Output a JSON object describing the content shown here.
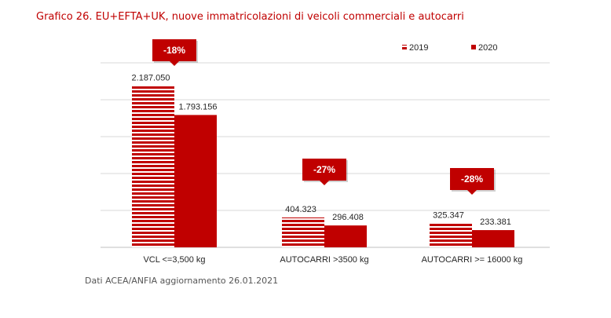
{
  "title": "Grafico 26. EU+EFTA+UK, nuove immatricolazioni di veicoli commerciali e autocarri",
  "source": "Dati ACEA/ANFIA aggiornamento 26.01.2021",
  "colors": {
    "bar_2020": "#c00000",
    "bar_2019_stripe": "#c00000",
    "title": "#c00000",
    "grid": "#d9d9d9"
  },
  "chart_data": {
    "type": "bar",
    "categories": [
      "VCL <=3,500 kg",
      "AUTOCARRI >3500 kg",
      "AUTOCARRI >= 16000 kg"
    ],
    "series": [
      {
        "name": "2019",
        "values": [
          2187050,
          404323,
          325347
        ],
        "labels": [
          "2.187.050",
          "404.323",
          "325.347"
        ],
        "pattern": "striped"
      },
      {
        "name": "2020",
        "values": [
          1793156,
          296408,
          233381
        ],
        "labels": [
          "1.793.156",
          "296.408",
          "233.381"
        ],
        "pattern": "solid"
      }
    ],
    "annotations": [
      "-18%",
      "-27%",
      "-28%"
    ],
    "ylim": [
      0,
      2500000
    ],
    "grid": true,
    "y_ticks_visible": false,
    "legend_position": "top-right"
  }
}
